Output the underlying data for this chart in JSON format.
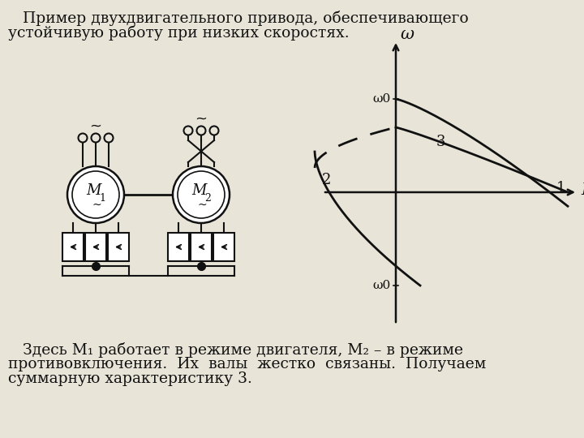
{
  "bg_color": "#E8E5D8",
  "title_line1": "   Пример двухдвигательного привода, обеспечивающего",
  "title_line2": "устойчивую работу при низких скоростях.",
  "bottom_line1": "   Здесь М₁ работает в режиме двигателя, М₂ – в режиме",
  "bottom_line2": "противовключения.  Их  валы  жестко  связаны.  Получаем",
  "bottom_line3": "суммарную характеристику 3.",
  "font_size_title": 13.5,
  "font_size_body": 13.5,
  "line_color": "#111111",
  "omega_label": "ω",
  "omega0_label": "ω0",
  "M_label": "M",
  "label1": "1",
  "label2": "2",
  "label3": "3"
}
